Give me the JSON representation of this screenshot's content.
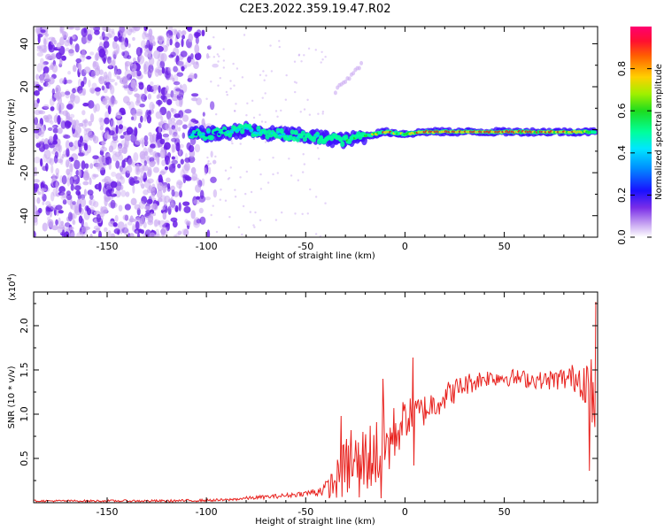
{
  "title": "C2E3.2022.359.19.47.R02",
  "colors": {
    "snr_line": "#e8231f",
    "signal_core": "#e8231f",
    "signal_mid": "#00ffb0",
    "signal_outer": "#0b18ff",
    "noise_dark": "#6a1fe6",
    "noise_light": "#c9a8f2"
  },
  "chart_data": [
    {
      "type": "heatmap",
      "xlabel": "Height of straight line (km)",
      "ylabel": "Frequency (Hz)",
      "xlim": [
        -187,
        97
      ],
      "ylim": [
        -50,
        48
      ],
      "xticks": [
        -150,
        -100,
        -50,
        0,
        50
      ],
      "yticks": [
        -40,
        -20,
        0,
        20,
        40
      ],
      "colorbar": {
        "label": "Normalized spectral amplitude",
        "range": [
          0,
          1
        ],
        "ticks": [
          "0.0",
          "0.2",
          "0.4",
          "0.6",
          "0.8"
        ],
        "colormap": [
          "#ffffff",
          "#8a2be2",
          "#0000ff",
          "#00bfff",
          "#00ff7f",
          "#32cd32",
          "#ffd700",
          "#ff4500",
          "#ff0066"
        ]
      },
      "noise_region_x": [
        -187,
        -100
      ],
      "signal_trace": {
        "x": [
          -108,
          -95,
          -80,
          -70,
          -60,
          -50,
          -40,
          -30,
          -20,
          -10,
          0,
          10,
          20,
          30,
          40,
          50,
          60,
          70,
          80,
          90,
          96
        ],
        "freq_hz": [
          -2,
          -2,
          0,
          -2,
          -2,
          -3,
          -4,
          -5,
          -3,
          -1,
          -2,
          -1,
          -1,
          -1,
          -1,
          -1,
          -1,
          -1,
          -1,
          -1,
          -1
        ],
        "peak_amplitude": [
          0.3,
          0.35,
          0.4,
          0.45,
          0.5,
          0.55,
          0.55,
          0.6,
          0.65,
          0.9,
          0.7,
          0.95,
          0.95,
          0.95,
          0.95,
          0.95,
          0.92,
          0.9,
          0.88,
          0.85,
          0.6
        ]
      },
      "artifact_streak": {
        "x": [
          -35,
          -22
        ],
        "freq_hz": [
          18,
          30
        ]
      }
    },
    {
      "type": "line",
      "xlabel": "Height of straight line (km)",
      "ylabel": "SNR (10 * v/v)",
      "y_multiplier": "(x10",
      "y_multiplier_exp": "4",
      "y_multiplier_close": ")",
      "xlim": [
        -187,
        97
      ],
      "ylim": [
        0,
        2.38
      ],
      "xticks": [
        -150,
        -100,
        -50,
        0,
        50
      ],
      "yticks": [
        "0.5",
        "1.0",
        "1.5",
        "2.0"
      ],
      "series": [
        {
          "trend_x": [
            -187,
            -120,
            -90,
            -80,
            -60,
            -45,
            -38,
            -33,
            -30,
            -25,
            -20,
            -15,
            -10,
            -5,
            0,
            10,
            20,
            30,
            40,
            50,
            60,
            70,
            80,
            88,
            92,
            95,
            97
          ],
          "trend_y": [
            0.02,
            0.02,
            0.03,
            0.05,
            0.08,
            0.12,
            0.18,
            0.28,
            0.4,
            0.45,
            0.5,
            0.55,
            0.62,
            0.78,
            0.95,
            1.05,
            1.2,
            1.33,
            1.41,
            1.42,
            1.4,
            1.38,
            1.4,
            1.42,
            1.38,
            1.0,
            1.3
          ],
          "noise_amp_x": [
            -187,
            -90,
            -50,
            -40,
            -30,
            -10,
            0,
            20,
            40,
            70,
            85,
            92,
            97
          ],
          "noise_amp_y": [
            0.01,
            0.015,
            0.03,
            0.08,
            0.35,
            0.45,
            0.22,
            0.16,
            0.1,
            0.1,
            0.16,
            0.3,
            0.4
          ],
          "spikes": [
            {
              "x": -32,
              "y": 0.98
            },
            {
              "x": -27,
              "y": 0.82
            },
            {
              "x": -11,
              "y": 1.4
            },
            {
              "x": -12,
              "y": 0.05
            },
            {
              "x": -23,
              "y": 0.06
            },
            {
              "x": 4,
              "y": 1.64
            },
            {
              "x": 4.5,
              "y": 0.42
            },
            {
              "x": 93,
              "y": 0.36
            },
            {
              "x": 96.5,
              "y": 2.27
            },
            {
              "x": 94,
              "y": 1.62
            }
          ]
        }
      ]
    }
  ]
}
